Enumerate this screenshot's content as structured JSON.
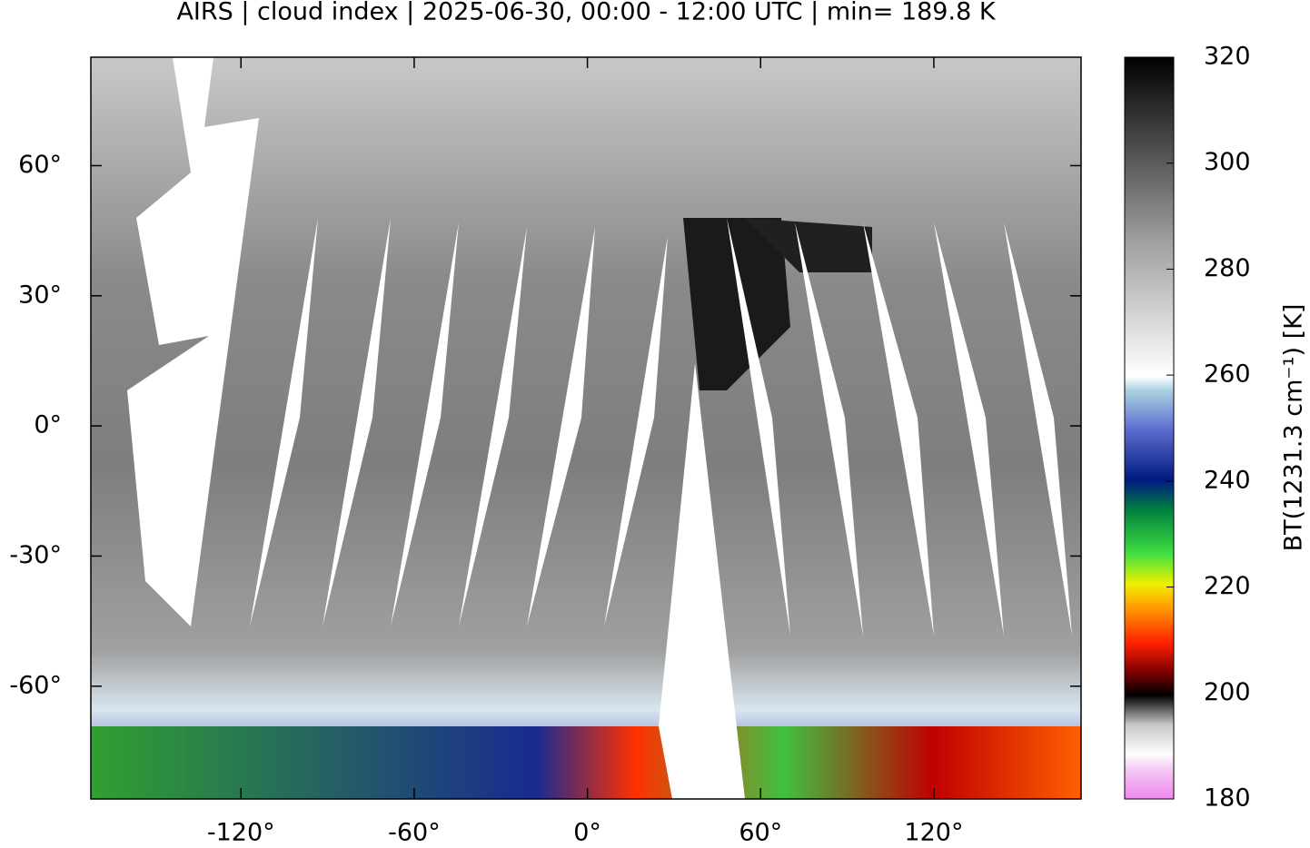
{
  "chart_data": {
    "type": "map",
    "title": "AIRS | cloud index | 2025-06-30, 00:00 - 12:00 UTC | min= 189.8 K",
    "xlim": [
      -172,
      171
    ],
    "ylim": [
      -86,
      85
    ],
    "xticks": [
      {
        "value": -120,
        "label": "-120°"
      },
      {
        "value": -60,
        "label": "-60°"
      },
      {
        "value": 0,
        "label": "0°"
      },
      {
        "value": 60,
        "label": "60°"
      },
      {
        "value": 120,
        "label": "120°"
      }
    ],
    "yticks": [
      {
        "value": -60,
        "label": "-60°"
      },
      {
        "value": -30,
        "label": "-30°"
      },
      {
        "value": 0,
        "label": "0°"
      },
      {
        "value": 30,
        "label": "30°"
      },
      {
        "value": 60,
        "label": "60°"
      }
    ],
    "colorbar": {
      "label": "BT(1231.3 cm⁻¹) [K]",
      "lim": [
        180,
        320
      ],
      "ticks": [
        180,
        200,
        220,
        240,
        260,
        280,
        300,
        320
      ]
    }
  }
}
